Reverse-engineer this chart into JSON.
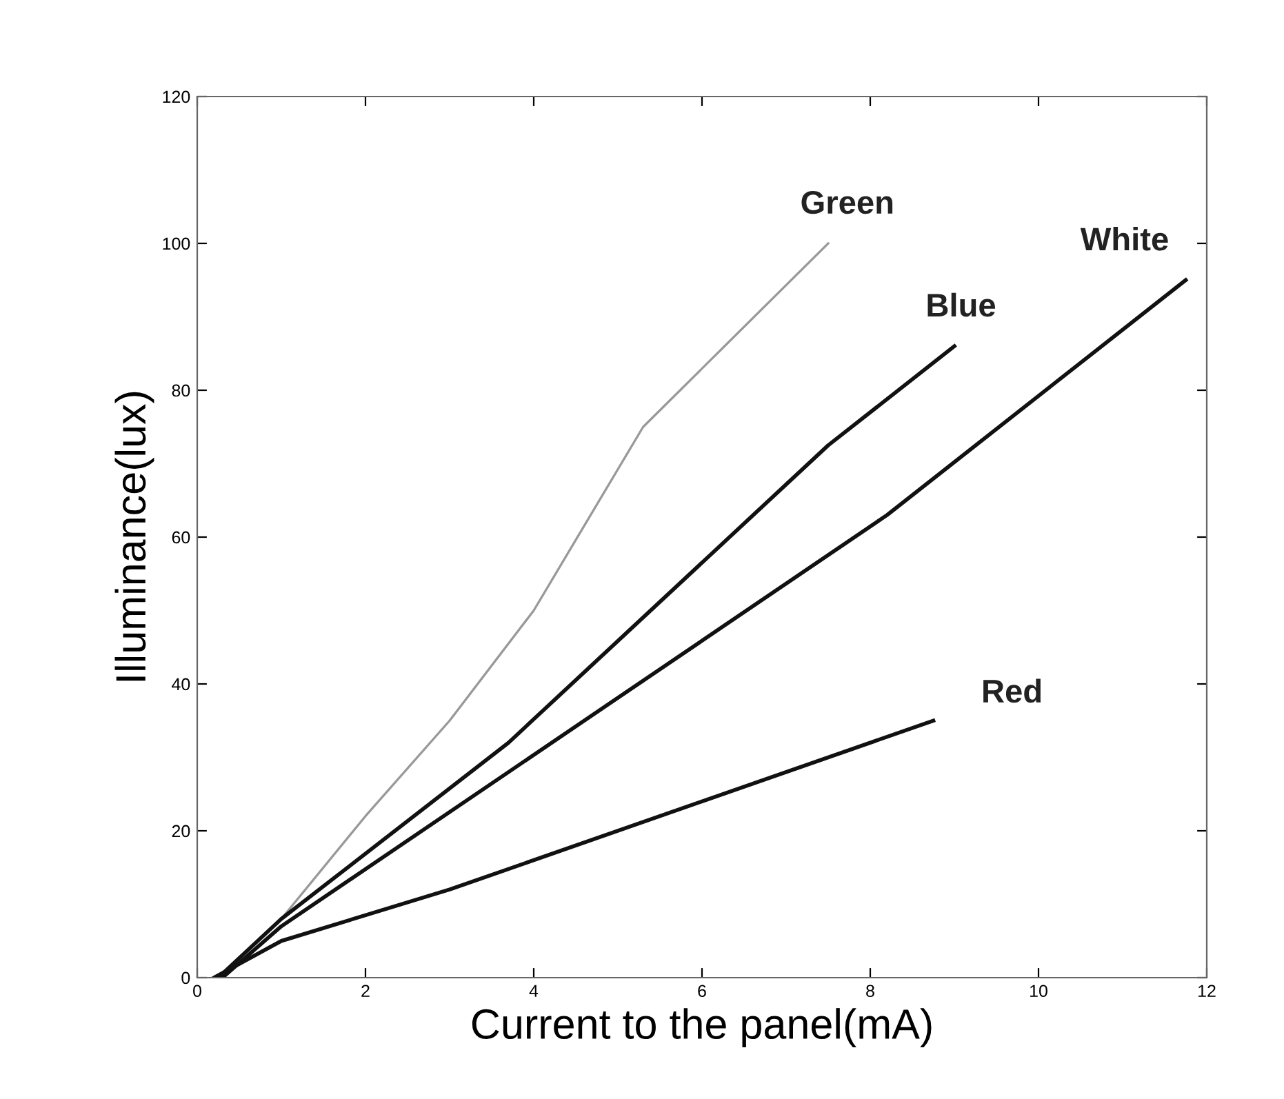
{
  "chart_data": {
    "type": "line",
    "xlabel": "Current to the panel(mA)",
    "ylabel": "Illuminance(lux)",
    "xlim": [
      0,
      12
    ],
    "xticks": [
      0,
      2,
      4,
      6,
      8,
      10,
      12
    ],
    "ylim": [
      0,
      120
    ],
    "yticks": [
      0,
      20,
      40,
      60,
      80,
      100,
      120
    ],
    "grid": false,
    "line_style": "solid",
    "series": [
      {
        "name": "Green",
        "color": "#999999",
        "x": [
          0.25,
          1,
          2,
          3,
          4,
          5.3,
          7.5
        ],
        "values": [
          0,
          8,
          22,
          35,
          50,
          75,
          100
        ]
      },
      {
        "name": "Blue",
        "color": "#111111",
        "x": [
          0.25,
          1,
          3.7,
          7.5,
          9
        ],
        "values": [
          0,
          8,
          32,
          72.5,
          86
        ]
      },
      {
        "name": "White",
        "color": "#111111",
        "x": [
          0.3,
          1,
          8.2,
          11.75
        ],
        "values": [
          0,
          7,
          63,
          95
        ]
      },
      {
        "name": "Red",
        "color": "#111111",
        "x": [
          0.2,
          1,
          3,
          6,
          8.75
        ],
        "values": [
          0,
          5,
          12,
          24,
          35
        ]
      }
    ]
  }
}
